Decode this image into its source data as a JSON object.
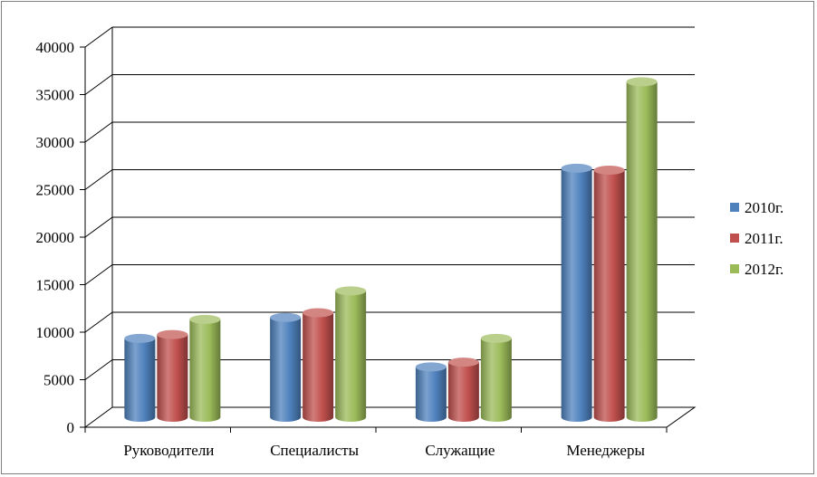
{
  "chart_data": {
    "type": "bar",
    "categories": [
      "Руководители",
      "Специалисты",
      "Служащие",
      "Менеджеры"
    ],
    "series": [
      {
        "name": "2010г.",
        "color": "#4f81bd",
        "values": [
          8300,
          10500,
          5300,
          26200
        ]
      },
      {
        "name": "2011г.",
        "color": "#c0504d",
        "values": [
          8700,
          11000,
          5800,
          26000
        ]
      },
      {
        "name": "2012г.",
        "color": "#9bbb59",
        "values": [
          10300,
          13300,
          8300,
          35300
        ]
      }
    ],
    "y_ticks": [
      "0",
      "5000",
      "10000",
      "15000",
      "20000",
      "25000",
      "30000",
      "35000",
      "40000"
    ],
    "ylim": [
      0,
      40000
    ],
    "title": "",
    "xlabel": "",
    "ylabel": "",
    "grid": true,
    "legend_position": "right",
    "style": "3d-cylinder"
  }
}
